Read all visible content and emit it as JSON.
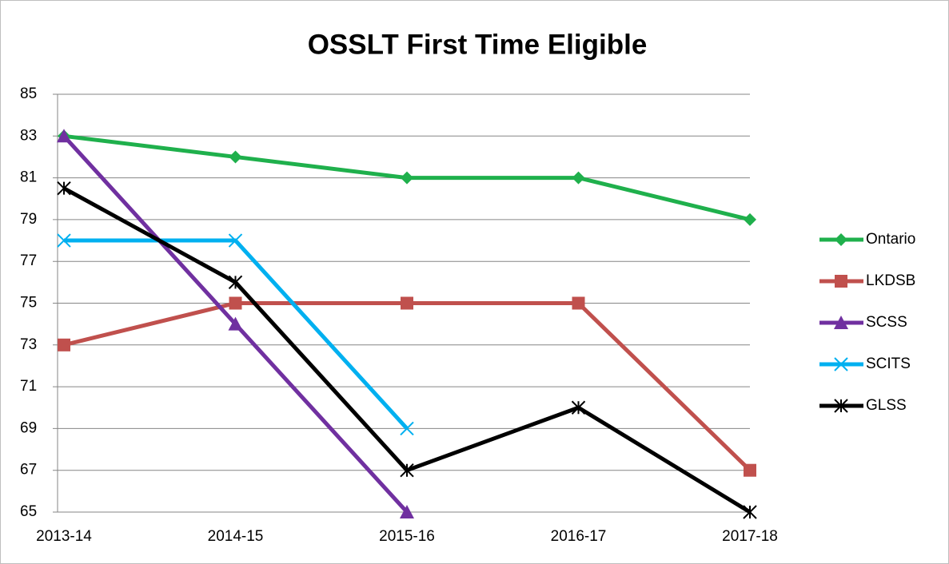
{
  "chart_data": {
    "type": "line",
    "title": "OSSLT First Time Eligible",
    "categories": [
      "2013-14",
      "2014-15",
      "2015-16",
      "2016-17",
      "2017-18"
    ],
    "series": [
      {
        "name": "Ontario",
        "color": "#1fb04c",
        "marker": "diamond",
        "values": [
          83,
          82,
          81,
          81,
          79
        ]
      },
      {
        "name": "LKDSB",
        "color": "#c0504d",
        "marker": "square",
        "values": [
          73,
          75,
          75,
          75,
          67
        ]
      },
      {
        "name": "SCSS",
        "color": "#7030a0",
        "marker": "triangle",
        "values": [
          83,
          74,
          65,
          null,
          null
        ]
      },
      {
        "name": "SCITS",
        "color": "#00b0f0",
        "marker": "x",
        "values": [
          78,
          78,
          69,
          null,
          null
        ]
      },
      {
        "name": "GLSS",
        "color": "#000000",
        "marker": "star",
        "values": [
          80.5,
          76,
          67,
          70,
          65
        ]
      }
    ],
    "ylim": [
      65,
      85
    ],
    "yticks": [
      65,
      67,
      69,
      71,
      73,
      75,
      77,
      79,
      81,
      83,
      85
    ],
    "grid": true,
    "legend": "right"
  }
}
